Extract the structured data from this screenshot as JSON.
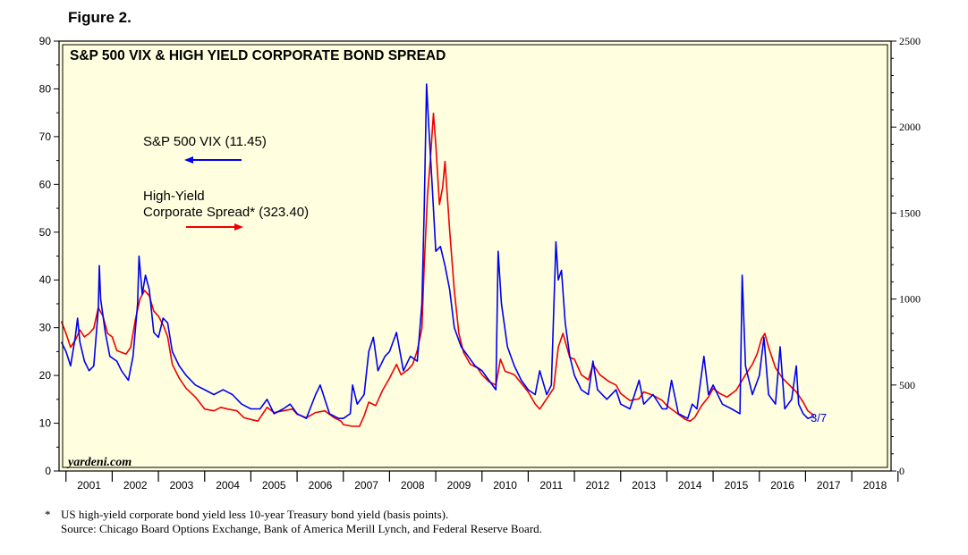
{
  "figure_label": "Figure 2.",
  "chart_data": {
    "type": "line",
    "title": "S&P 500 VIX & HIGH YIELD CORPORATE BOND SPREAD",
    "watermark": "yardeni.com",
    "x_domain": [
      2000.85,
      2018.85
    ],
    "year_labels": [
      "2001",
      "2002",
      "2003",
      "2004",
      "2005",
      "2006",
      "2007",
      "2008",
      "2009",
      "2010",
      "2011",
      "2012",
      "2013",
      "2014",
      "2015",
      "2016",
      "2017",
      "2018"
    ],
    "left_axis": {
      "min": 0,
      "max": 90,
      "ticks": [
        0,
        10,
        20,
        30,
        40,
        50,
        60,
        70,
        80,
        90
      ]
    },
    "right_axis": {
      "min": 0,
      "max": 2500,
      "ticks": [
        0,
        500,
        1000,
        1500,
        2000,
        2500
      ]
    },
    "end_label": "3/7",
    "colors": {
      "vix": "#0000ee",
      "spread": "#ee0000",
      "plot_bg": "#ffffe0"
    },
    "series": [
      {
        "name": "S&P 500 VIX",
        "legend": "S&P 500 VIX (11.45)",
        "axis": "left",
        "points": [
          [
            2000.9,
            27
          ],
          [
            2001.0,
            25
          ],
          [
            2001.1,
            22
          ],
          [
            2001.2,
            28
          ],
          [
            2001.25,
            32
          ],
          [
            2001.3,
            27
          ],
          [
            2001.4,
            23
          ],
          [
            2001.5,
            21
          ],
          [
            2001.6,
            22
          ],
          [
            2001.7,
            34
          ],
          [
            2001.72,
            43
          ],
          [
            2001.75,
            36
          ],
          [
            2001.85,
            29
          ],
          [
            2001.95,
            24
          ],
          [
            2002.1,
            23
          ],
          [
            2002.2,
            21
          ],
          [
            2002.35,
            19
          ],
          [
            2002.45,
            24
          ],
          [
            2002.55,
            35
          ],
          [
            2002.58,
            45
          ],
          [
            2002.65,
            37
          ],
          [
            2002.72,
            41
          ],
          [
            2002.8,
            38
          ],
          [
            2002.9,
            29
          ],
          [
            2003.0,
            28
          ],
          [
            2003.1,
            32
          ],
          [
            2003.2,
            31
          ],
          [
            2003.3,
            25
          ],
          [
            2003.45,
            22
          ],
          [
            2003.6,
            20
          ],
          [
            2003.8,
            18
          ],
          [
            2004.0,
            17
          ],
          [
            2004.2,
            16
          ],
          [
            2004.4,
            17
          ],
          [
            2004.6,
            16
          ],
          [
            2004.8,
            14
          ],
          [
            2005.0,
            13
          ],
          [
            2005.2,
            13
          ],
          [
            2005.35,
            15
          ],
          [
            2005.5,
            12
          ],
          [
            2005.7,
            13
          ],
          [
            2005.85,
            14
          ],
          [
            2006.0,
            12
          ],
          [
            2006.2,
            11
          ],
          [
            2006.4,
            16
          ],
          [
            2006.5,
            18
          ],
          [
            2006.7,
            12
          ],
          [
            2006.9,
            11
          ],
          [
            2007.0,
            11
          ],
          [
            2007.15,
            12
          ],
          [
            2007.2,
            18
          ],
          [
            2007.3,
            14
          ],
          [
            2007.45,
            16
          ],
          [
            2007.55,
            25
          ],
          [
            2007.65,
            28
          ],
          [
            2007.75,
            21
          ],
          [
            2007.9,
            24
          ],
          [
            2008.0,
            25
          ],
          [
            2008.15,
            29
          ],
          [
            2008.3,
            21
          ],
          [
            2008.45,
            24
          ],
          [
            2008.6,
            23
          ],
          [
            2008.7,
            35
          ],
          [
            2008.75,
            55
          ],
          [
            2008.8,
            81
          ],
          [
            2008.85,
            72
          ],
          [
            2008.92,
            60
          ],
          [
            2009.0,
            46
          ],
          [
            2009.1,
            47
          ],
          [
            2009.2,
            43
          ],
          [
            2009.3,
            38
          ],
          [
            2009.4,
            30
          ],
          [
            2009.55,
            26
          ],
          [
            2009.7,
            24
          ],
          [
            2009.85,
            22
          ],
          [
            2010.0,
            21
          ],
          [
            2010.15,
            19
          ],
          [
            2010.3,
            17
          ],
          [
            2010.35,
            46
          ],
          [
            2010.42,
            35
          ],
          [
            2010.55,
            26
          ],
          [
            2010.7,
            22
          ],
          [
            2010.85,
            19
          ],
          [
            2011.0,
            17
          ],
          [
            2011.15,
            16
          ],
          [
            2011.25,
            21
          ],
          [
            2011.4,
            16
          ],
          [
            2011.5,
            18
          ],
          [
            2011.6,
            48
          ],
          [
            2011.65,
            40
          ],
          [
            2011.72,
            42
          ],
          [
            2011.8,
            31
          ],
          [
            2011.9,
            24
          ],
          [
            2012.0,
            20
          ],
          [
            2012.15,
            17
          ],
          [
            2012.3,
            16
          ],
          [
            2012.4,
            23
          ],
          [
            2012.5,
            17
          ],
          [
            2012.7,
            15
          ],
          [
            2012.9,
            17
          ],
          [
            2013.0,
            14
          ],
          [
            2013.2,
            13
          ],
          [
            2013.4,
            19
          ],
          [
            2013.5,
            14
          ],
          [
            2013.7,
            16
          ],
          [
            2013.9,
            13
          ],
          [
            2014.0,
            13
          ],
          [
            2014.1,
            19
          ],
          [
            2014.25,
            12
          ],
          [
            2014.45,
            11
          ],
          [
            2014.55,
            14
          ],
          [
            2014.65,
            13
          ],
          [
            2014.8,
            24
          ],
          [
            2014.9,
            16
          ],
          [
            2015.0,
            18
          ],
          [
            2015.2,
            14
          ],
          [
            2015.4,
            13
          ],
          [
            2015.58,
            12
          ],
          [
            2015.63,
            41
          ],
          [
            2015.7,
            22
          ],
          [
            2015.85,
            16
          ],
          [
            2016.0,
            20
          ],
          [
            2016.1,
            28
          ],
          [
            2016.2,
            16
          ],
          [
            2016.35,
            14
          ],
          [
            2016.45,
            26
          ],
          [
            2016.55,
            13
          ],
          [
            2016.7,
            15
          ],
          [
            2016.8,
            22
          ],
          [
            2016.85,
            14
          ],
          [
            2016.95,
            12
          ],
          [
            2017.05,
            11
          ],
          [
            2017.18,
            11.45
          ]
        ]
      },
      {
        "name": "High-Yield Corporate Spread",
        "legend": "High-Yield Corporate Spread* (323.40)",
        "axis": "right",
        "points": [
          [
            2000.9,
            870
          ],
          [
            2001.0,
            800
          ],
          [
            2001.1,
            720
          ],
          [
            2001.2,
            760
          ],
          [
            2001.3,
            820
          ],
          [
            2001.4,
            780
          ],
          [
            2001.5,
            800
          ],
          [
            2001.6,
            830
          ],
          [
            2001.7,
            950
          ],
          [
            2001.8,
            900
          ],
          [
            2001.9,
            800
          ],
          [
            2002.0,
            780
          ],
          [
            2002.1,
            700
          ],
          [
            2002.2,
            690
          ],
          [
            2002.3,
            680
          ],
          [
            2002.4,
            720
          ],
          [
            2002.5,
            880
          ],
          [
            2002.6,
            1000
          ],
          [
            2002.7,
            1050
          ],
          [
            2002.8,
            1020
          ],
          [
            2002.9,
            930
          ],
          [
            2003.0,
            900
          ],
          [
            2003.1,
            850
          ],
          [
            2003.2,
            780
          ],
          [
            2003.3,
            620
          ],
          [
            2003.45,
            540
          ],
          [
            2003.6,
            480
          ],
          [
            2003.8,
            430
          ],
          [
            2004.0,
            360
          ],
          [
            2004.2,
            350
          ],
          [
            2004.35,
            370
          ],
          [
            2004.5,
            360
          ],
          [
            2004.7,
            350
          ],
          [
            2004.85,
            310
          ],
          [
            2005.0,
            300
          ],
          [
            2005.15,
            290
          ],
          [
            2005.35,
            370
          ],
          [
            2005.5,
            340
          ],
          [
            2005.7,
            350
          ],
          [
            2005.9,
            360
          ],
          [
            2006.0,
            330
          ],
          [
            2006.2,
            310
          ],
          [
            2006.4,
            340
          ],
          [
            2006.6,
            350
          ],
          [
            2006.8,
            310
          ],
          [
            2006.95,
            290
          ],
          [
            2007.0,
            270
          ],
          [
            2007.2,
            260
          ],
          [
            2007.35,
            260
          ],
          [
            2007.45,
            320
          ],
          [
            2007.55,
            400
          ],
          [
            2007.7,
            380
          ],
          [
            2007.85,
            470
          ],
          [
            2008.0,
            540
          ],
          [
            2008.15,
            620
          ],
          [
            2008.25,
            560
          ],
          [
            2008.4,
            590
          ],
          [
            2008.5,
            620
          ],
          [
            2008.6,
            700
          ],
          [
            2008.7,
            830
          ],
          [
            2008.75,
            1200
          ],
          [
            2008.82,
            1600
          ],
          [
            2008.88,
            1800
          ],
          [
            2008.95,
            2080
          ],
          [
            2009.0,
            1900
          ],
          [
            2009.08,
            1550
          ],
          [
            2009.15,
            1650
          ],
          [
            2009.2,
            1800
          ],
          [
            2009.3,
            1400
          ],
          [
            2009.4,
            1050
          ],
          [
            2009.5,
            800
          ],
          [
            2009.6,
            690
          ],
          [
            2009.75,
            620
          ],
          [
            2009.9,
            600
          ],
          [
            2010.0,
            560
          ],
          [
            2010.15,
            520
          ],
          [
            2010.3,
            500
          ],
          [
            2010.4,
            650
          ],
          [
            2010.5,
            580
          ],
          [
            2010.7,
            560
          ],
          [
            2010.85,
            510
          ],
          [
            2011.0,
            460
          ],
          [
            2011.15,
            390
          ],
          [
            2011.25,
            360
          ],
          [
            2011.4,
            420
          ],
          [
            2011.55,
            480
          ],
          [
            2011.65,
            720
          ],
          [
            2011.75,
            800
          ],
          [
            2011.9,
            660
          ],
          [
            2012.0,
            650
          ],
          [
            2012.15,
            560
          ],
          [
            2012.3,
            530
          ],
          [
            2012.4,
            620
          ],
          [
            2012.55,
            560
          ],
          [
            2012.75,
            520
          ],
          [
            2012.9,
            500
          ],
          [
            2013.0,
            450
          ],
          [
            2013.2,
            410
          ],
          [
            2013.4,
            420
          ],
          [
            2013.5,
            460
          ],
          [
            2013.7,
            440
          ],
          [
            2013.9,
            410
          ],
          [
            2014.0,
            380
          ],
          [
            2014.2,
            340
          ],
          [
            2014.4,
            300
          ],
          [
            2014.5,
            290
          ],
          [
            2014.6,
            310
          ],
          [
            2014.75,
            380
          ],
          [
            2014.9,
            430
          ],
          [
            2015.0,
            480
          ],
          [
            2015.15,
            450
          ],
          [
            2015.3,
            430
          ],
          [
            2015.5,
            470
          ],
          [
            2015.7,
            560
          ],
          [
            2015.85,
            620
          ],
          [
            2015.95,
            680
          ],
          [
            2016.05,
            770
          ],
          [
            2016.12,
            800
          ],
          [
            2016.2,
            720
          ],
          [
            2016.35,
            600
          ],
          [
            2016.5,
            540
          ],
          [
            2016.65,
            500
          ],
          [
            2016.8,
            460
          ],
          [
            2016.95,
            400
          ],
          [
            2017.05,
            350
          ],
          [
            2017.18,
            323.4
          ]
        ]
      }
    ]
  },
  "footnote": {
    "marker": "*",
    "line1": "US high-yield corporate bond yield less 10-year Treasury bond yield (basis points).",
    "line2": "Source: Chicago Board Options Exchange, Bank of America Merill Lynch, and Federal Reserve Board."
  }
}
